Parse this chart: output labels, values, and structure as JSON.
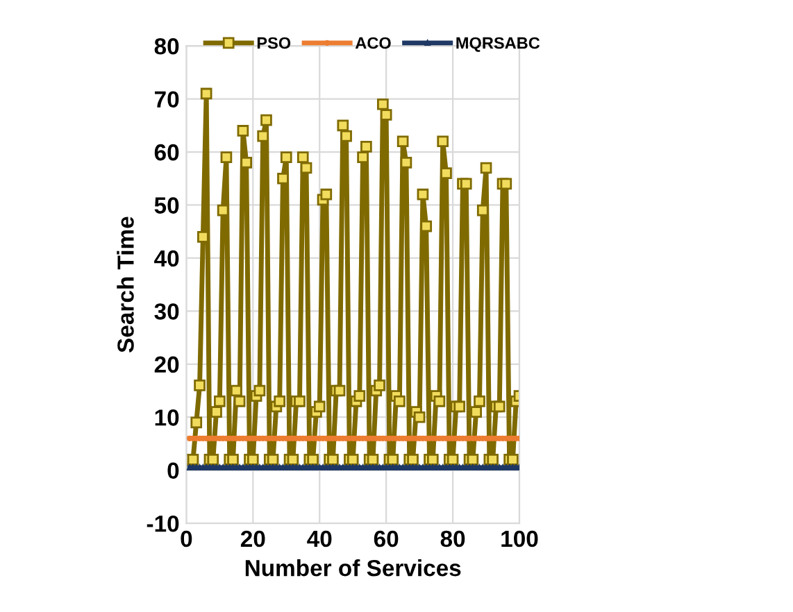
{
  "chart_data": {
    "type": "line",
    "xlabel": "Number of Services",
    "ylabel": "Search Time",
    "xlim": [
      0,
      100
    ],
    "xticks": [
      0,
      20,
      40,
      60,
      80,
      100
    ],
    "ylim": [
      -10,
      80
    ],
    "yticks": [
      -10,
      0,
      10,
      20,
      30,
      40,
      50,
      60,
      70,
      80
    ],
    "grid": true,
    "legend": "top",
    "line_style": "solid",
    "x": [
      1,
      2,
      3,
      4,
      5,
      6,
      7,
      8,
      9,
      10,
      11,
      12,
      13,
      14,
      15,
      16,
      17,
      18,
      19,
      20,
      21,
      22,
      23,
      24,
      25,
      26,
      27,
      28,
      29,
      30,
      31,
      32,
      33,
      34,
      35,
      36,
      37,
      38,
      39,
      40,
      41,
      42,
      43,
      44,
      45,
      46,
      47,
      48,
      49,
      50,
      51,
      52,
      53,
      54,
      55,
      56,
      57,
      58,
      59,
      60,
      61,
      62,
      63,
      64,
      65,
      66,
      67,
      68,
      69,
      70,
      71,
      72,
      73,
      74,
      75,
      76,
      77,
      78,
      79,
      80,
      81,
      82,
      83,
      84,
      85,
      86,
      87,
      88,
      89,
      90,
      91,
      92,
      93,
      94,
      95,
      96,
      97,
      98,
      99,
      100
    ],
    "series": [
      {
        "name": "PSO",
        "color": "#7f6a00",
        "marker": "square",
        "values": [
          2,
          2,
          9,
          16,
          44,
          71,
          2,
          2,
          11,
          13,
          49,
          59,
          2,
          2,
          15,
          13,
          64,
          58,
          2,
          2,
          14,
          15,
          63,
          66,
          2,
          2,
          12,
          13,
          55,
          59,
          2,
          2,
          13,
          13,
          59,
          57,
          2,
          2,
          11,
          12,
          51,
          52,
          2,
          2,
          15,
          15,
          65,
          63,
          2,
          2,
          13,
          14,
          59,
          61,
          2,
          2,
          15,
          16,
          69,
          67,
          2,
          2,
          14,
          13,
          62,
          58,
          2,
          2,
          11,
          10,
          52,
          46,
          2,
          2,
          14,
          13,
          62,
          56,
          2,
          2,
          12,
          12,
          54,
          54,
          2,
          2,
          11,
          13,
          49,
          57,
          2,
          2,
          12,
          12,
          54,
          54,
          2,
          2,
          13,
          14
        ]
      },
      {
        "name": "ACO",
        "color": "#ed7d31",
        "marker": "circle",
        "values": [
          6,
          6,
          6,
          6,
          6,
          6,
          6,
          6,
          6,
          6,
          6,
          6,
          6,
          6,
          6,
          6,
          6,
          6,
          6,
          6,
          6,
          6,
          6,
          6,
          6,
          6,
          6,
          6,
          6,
          6,
          6,
          6,
          6,
          6,
          6,
          6,
          6,
          6,
          6,
          6,
          6,
          6,
          6,
          6,
          6,
          6,
          6,
          6,
          6,
          6,
          6,
          6,
          6,
          6,
          6,
          6,
          6,
          6,
          6,
          6,
          6,
          6,
          6,
          6,
          6,
          6,
          6,
          6,
          6,
          6,
          6,
          6,
          6,
          6,
          6,
          6,
          6,
          6,
          6,
          6,
          6,
          6,
          6,
          6,
          6,
          6,
          6,
          6,
          6,
          6,
          6,
          6,
          6,
          6,
          6,
          6,
          6,
          6,
          6,
          6
        ]
      },
      {
        "name": "MQRSABC",
        "color": "#1f3864",
        "marker": "triangle",
        "values": [
          0.5,
          0.5,
          0.5,
          0.5,
          0.5,
          0.5,
          0.5,
          0.5,
          0.5,
          0.5,
          0.5,
          0.5,
          0.5,
          0.5,
          0.5,
          0.5,
          0.5,
          0.5,
          0.5,
          0.5,
          0.5,
          0.5,
          0.5,
          0.5,
          0.5,
          0.5,
          0.5,
          0.5,
          0.5,
          0.5,
          0.5,
          0.5,
          0.5,
          0.5,
          0.5,
          0.5,
          0.5,
          0.5,
          0.5,
          0.5,
          0.5,
          0.5,
          0.5,
          0.5,
          0.5,
          0.5,
          0.5,
          0.5,
          0.5,
          0.5,
          0.5,
          0.5,
          0.5,
          0.5,
          0.5,
          0.5,
          0.5,
          0.5,
          0.5,
          0.5,
          0.5,
          0.5,
          0.5,
          0.5,
          0.5,
          0.5,
          0.5,
          0.5,
          0.5,
          0.5,
          0.5,
          0.5,
          0.5,
          0.5,
          0.5,
          0.5,
          0.5,
          0.5,
          0.5,
          0.5,
          0.5,
          0.5,
          0.5,
          0.5,
          0.5,
          0.5,
          0.5,
          0.5,
          0.5,
          0.5,
          0.5,
          0.5,
          0.5,
          0.5,
          0.5,
          0.5,
          0.5,
          0.5,
          0.5,
          0.5
        ]
      }
    ]
  }
}
